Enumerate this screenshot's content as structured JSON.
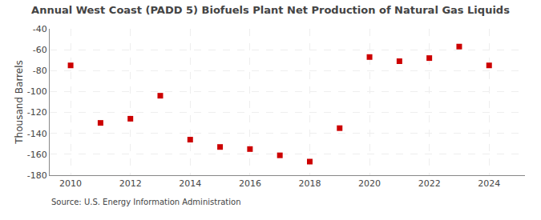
{
  "chart_data": {
    "type": "scatter",
    "title": "Annual West Coast (PADD 5) Biofuels Plant Net Production of Natural Gas Liquids",
    "ylabel": "Thousand Barrels",
    "annotations": [
      "Source: U.S. Energy Information Administration"
    ],
    "x": [
      2010,
      2011,
      2012,
      2013,
      2014,
      2015,
      2016,
      2017,
      2018,
      2019,
      2020,
      2021,
      2022,
      2023,
      2024
    ],
    "values": [
      -75,
      -130,
      -126,
      -104,
      -146,
      -153,
      -155,
      -161,
      -167,
      -135,
      -67,
      -71,
      -68,
      -57,
      -75
    ],
    "xlim": [
      2009.3,
      2025.2
    ],
    "ylim": [
      -180,
      -40
    ],
    "xticks": [
      2010,
      2012,
      2014,
      2016,
      2018,
      2020,
      2022,
      2024
    ],
    "yticks": [
      -180,
      -160,
      -140,
      -120,
      -100,
      -80,
      -60,
      -40
    ],
    "color": "#cc0000",
    "marker": "square",
    "grid": true
  }
}
